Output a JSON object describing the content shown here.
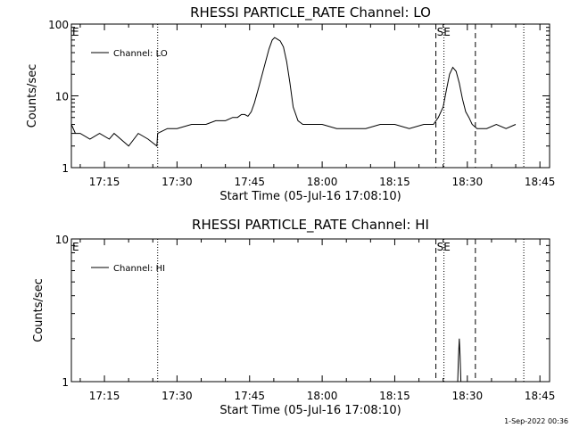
{
  "footer": {
    "timestamp": "1-Sep-2022 00:36"
  },
  "chart_data": [
    {
      "type": "line",
      "title": "RHESSI PARTICLE_RATE Channel: LO",
      "xlabel": "Start Time (05-Jul-16 17:08:10)",
      "ylabel": "Counts/sec",
      "yscale": "log",
      "xlim": [
        "17:08:10",
        "18:47:00"
      ],
      "ylim": [
        1,
        100
      ],
      "xticks": [
        "17:15",
        "17:30",
        "17:45",
        "18:00",
        "18:15",
        "18:30",
        "18:45"
      ],
      "yticks": [
        "1",
        "10",
        "100"
      ],
      "legend": {
        "position": "top-left",
        "entries": [
          "Channel: LO"
        ]
      },
      "flags": [
        {
          "label": "E",
          "time": "17:08:10",
          "style": "dotted"
        },
        {
          "label": "",
          "time": "17:26:00",
          "style": "dotted"
        },
        {
          "label": "",
          "time": "18:23:30",
          "style": "dashed"
        },
        {
          "label": "SE",
          "time": "18:25:10",
          "style": "dotted"
        },
        {
          "label": "",
          "time": "18:31:40",
          "style": "dashed"
        },
        {
          "label": "",
          "time": "18:41:40",
          "style": "dotted"
        }
      ],
      "series": [
        {
          "name": "Channel: LO",
          "x": [
            "17:08:10",
            "17:09:00",
            "17:10:00",
            "17:12:00",
            "17:14:00",
            "17:16:00",
            "17:17:00",
            "17:20:00",
            "17:22:00",
            "17:24:00",
            "17:25:50",
            "17:26:00",
            "17:28:00",
            "17:30:00",
            "17:33:00",
            "17:36:00",
            "17:38:00",
            "17:40:00",
            "17:41:30",
            "17:42:30",
            "17:43:20",
            "17:44:00",
            "17:44:40",
            "17:45:20",
            "17:46:00",
            "17:47:00",
            "17:48:00",
            "17:49:00",
            "17:49:40",
            "17:50:10",
            "17:50:40",
            "17:51:20",
            "17:52:00",
            "17:52:40",
            "17:53:20",
            "17:54:00",
            "17:55:00",
            "17:56:00",
            "17:58:00",
            "18:00:00",
            "18:03:00",
            "18:06:00",
            "18:09:00",
            "18:12:00",
            "18:15:00",
            "18:18:00",
            "18:21:00",
            "18:23:00",
            "18:24:00",
            "18:25:00",
            "18:25:40",
            "18:26:20",
            "18:27:00",
            "18:27:40",
            "18:28:20",
            "18:29:00",
            "18:29:40",
            "18:30:20",
            "18:31:00",
            "18:32:00",
            "18:34:00",
            "18:36:00",
            "18:38:00",
            "18:40:00"
          ],
          "values": [
            4,
            3,
            3,
            2.5,
            3,
            2.5,
            3,
            2,
            3,
            2.5,
            2,
            3,
            3.5,
            3.5,
            4,
            4,
            4.5,
            4.5,
            5,
            5,
            5.5,
            5.5,
            5.2,
            6,
            8,
            14,
            25,
            45,
            60,
            65,
            62,
            58,
            48,
            30,
            15,
            7,
            4.5,
            4,
            4,
            4,
            3.5,
            3.5,
            3.5,
            4,
            4,
            3.5,
            4,
            4,
            5,
            7,
            12,
            20,
            25,
            22,
            15,
            9,
            6,
            5,
            4,
            3.5,
            3.5,
            4,
            3.5,
            4
          ]
        }
      ]
    },
    {
      "type": "line",
      "title": "RHESSI PARTICLE_RATE Channel: HI",
      "xlabel": "Start Time (05-Jul-16 17:08:10)",
      "ylabel": "Counts/sec",
      "yscale": "log",
      "xlim": [
        "17:08:10",
        "18:47:00"
      ],
      "ylim": [
        1,
        10
      ],
      "xticks": [
        "17:15",
        "17:30",
        "17:45",
        "18:00",
        "18:15",
        "18:30",
        "18:45"
      ],
      "yticks": [
        "1",
        "10"
      ],
      "legend": {
        "position": "top-left",
        "entries": [
          "Channel: HI"
        ]
      },
      "flags": [
        {
          "label": "E",
          "time": "17:08:10",
          "style": "dotted"
        },
        {
          "label": "",
          "time": "17:26:00",
          "style": "dotted"
        },
        {
          "label": "",
          "time": "18:23:30",
          "style": "dashed"
        },
        {
          "label": "SE",
          "time": "18:25:10",
          "style": "dotted"
        },
        {
          "label": "",
          "time": "18:31:40",
          "style": "dashed"
        },
        {
          "label": "",
          "time": "18:41:40",
          "style": "dotted"
        }
      ],
      "series": [
        {
          "name": "Channel: HI",
          "x": [
            "18:28:00",
            "18:28:10",
            "18:28:20",
            "18:28:30",
            "18:28:40"
          ],
          "values": [
            1,
            1.5,
            2,
            1.5,
            1
          ]
        }
      ]
    }
  ]
}
